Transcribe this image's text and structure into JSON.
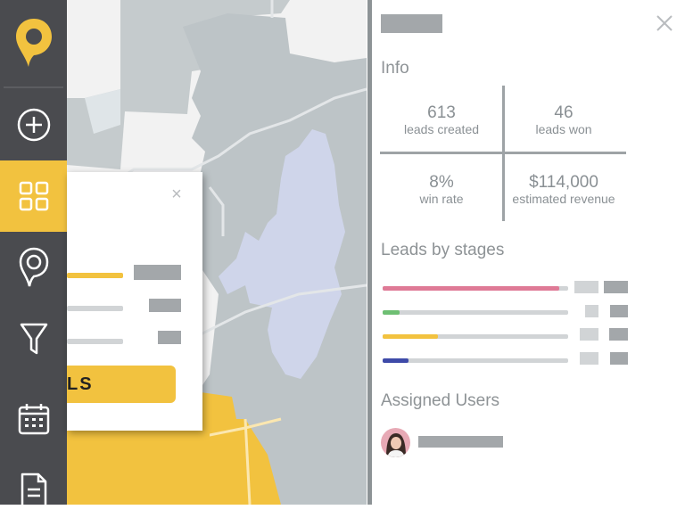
{
  "sidebar": {
    "logo_icon": "map-pin-logo-icon",
    "nav_items": [
      {
        "icon": "add-circle-icon",
        "active": false
      },
      {
        "icon": "dashboard-grid-icon",
        "active": true
      },
      {
        "icon": "map-pin-icon",
        "active": false
      },
      {
        "icon": "filter-funnel-icon",
        "active": false
      },
      {
        "icon": "calendar-icon",
        "active": false
      },
      {
        "icon": "document-icon",
        "active": false
      }
    ],
    "accent_color": "#f2c23f"
  },
  "map_popup": {
    "button_label": "LS",
    "close_glyph": "×"
  },
  "panel": {
    "close_glyph": "×",
    "info_title": "Info",
    "stats": [
      {
        "value": "613",
        "label": "leads created"
      },
      {
        "value": "46",
        "label": "leads won"
      },
      {
        "value": "8%",
        "label": "win rate"
      },
      {
        "value": "$114,000",
        "label": "estimated revenue"
      }
    ],
    "stages_title": "Leads by stages",
    "stages": [
      {
        "color": "#df7a96",
        "progress": 0.95
      },
      {
        "color": "#6ebf73",
        "progress": 0.09
      },
      {
        "color": "#f2c23f",
        "progress": 0.3
      },
      {
        "color": "#3e4aa8",
        "progress": 0.14
      }
    ],
    "assigned_title": "Assigned Users",
    "user_icon": "user-avatar"
  }
}
